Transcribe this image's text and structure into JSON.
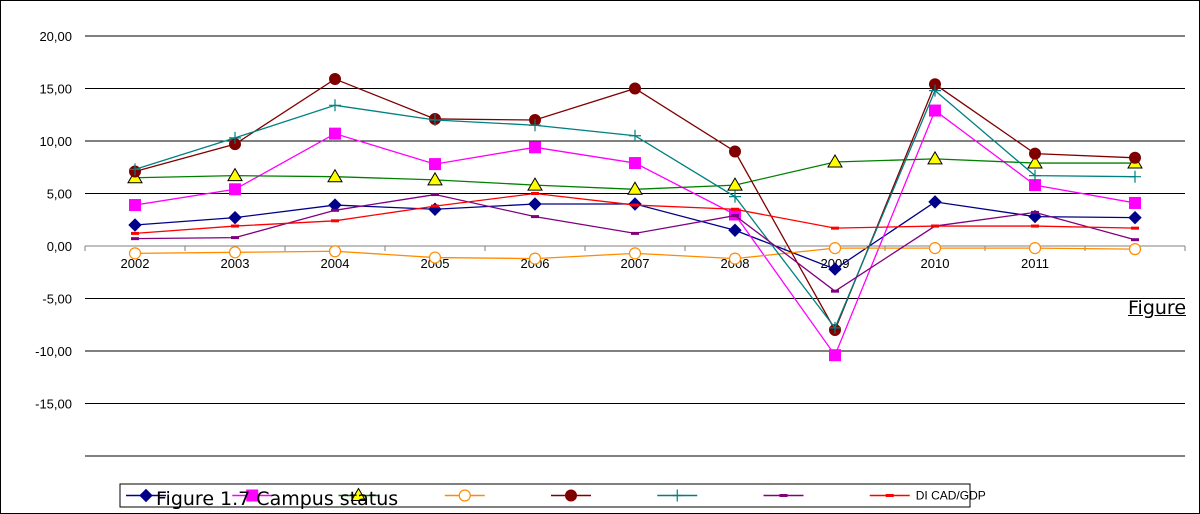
{
  "chart_data": {
    "type": "line",
    "categories": [
      "2002",
      "2003",
      "2004",
      "2005",
      "2006",
      "2007",
      "2008",
      "2009",
      "2010",
      "2011",
      ""
    ],
    "y_tick_labels": [
      "20,00",
      "15,00",
      "10,00",
      "5,00",
      "0,00",
      "-5,00",
      "-10,00",
      "-15,00"
    ],
    "ylim": [
      -20,
      20
    ],
    "grid": true,
    "legend_placement": "bottom",
    "series": [
      {
        "name": "",
        "color": "#00008b",
        "marker": "diamond",
        "values": [
          2.0,
          2.7,
          3.9,
          3.5,
          4.0,
          4.0,
          1.5,
          -2.2,
          4.2,
          2.8,
          2.7
        ]
      },
      {
        "name": "",
        "color": "#ff00ff",
        "marker": "square",
        "values": [
          3.9,
          5.4,
          10.7,
          7.8,
          9.4,
          7.9,
          3.0,
          -10.4,
          12.9,
          5.8,
          4.1
        ]
      },
      {
        "name": "",
        "color": "#008000",
        "marker": "triangle",
        "values": [
          6.5,
          6.7,
          6.6,
          6.3,
          5.8,
          5.4,
          5.8,
          8.0,
          8.3,
          7.9,
          7.9
        ]
      },
      {
        "name": "",
        "color": "#ff8c00",
        "marker": "circle-open",
        "values": [
          -0.7,
          -0.6,
          -0.5,
          -1.1,
          -1.2,
          -0.7,
          -1.2,
          -0.2,
          -0.2,
          -0.2,
          -0.3
        ]
      },
      {
        "name": "",
        "color": "#800000",
        "marker": "circle",
        "values": [
          7.1,
          9.7,
          15.9,
          12.1,
          12.0,
          15.0,
          9.0,
          -8.0,
          15.4,
          8.8,
          8.4
        ]
      },
      {
        "name": "",
        "color": "#008080",
        "marker": "plus",
        "values": [
          7.3,
          10.3,
          13.4,
          12.0,
          11.5,
          10.5,
          4.7,
          -7.8,
          14.8,
          6.7,
          6.6
        ]
      },
      {
        "name": "",
        "color": "#800080",
        "marker": "dash",
        "values": [
          0.7,
          0.8,
          3.4,
          4.9,
          2.8,
          1.2,
          2.9,
          -4.3,
          1.9,
          3.2,
          0.6
        ]
      },
      {
        "name": "DI CAD/GDP",
        "color": "#ff0000",
        "marker": "dash",
        "values": [
          1.2,
          1.9,
          2.4,
          3.8,
          5.0,
          3.9,
          3.5,
          1.7,
          1.9,
          1.9,
          1.7
        ]
      }
    ]
  },
  "overlay_caption": "Figure 1.7 Campus status",
  "overlay_figure": "Figure"
}
